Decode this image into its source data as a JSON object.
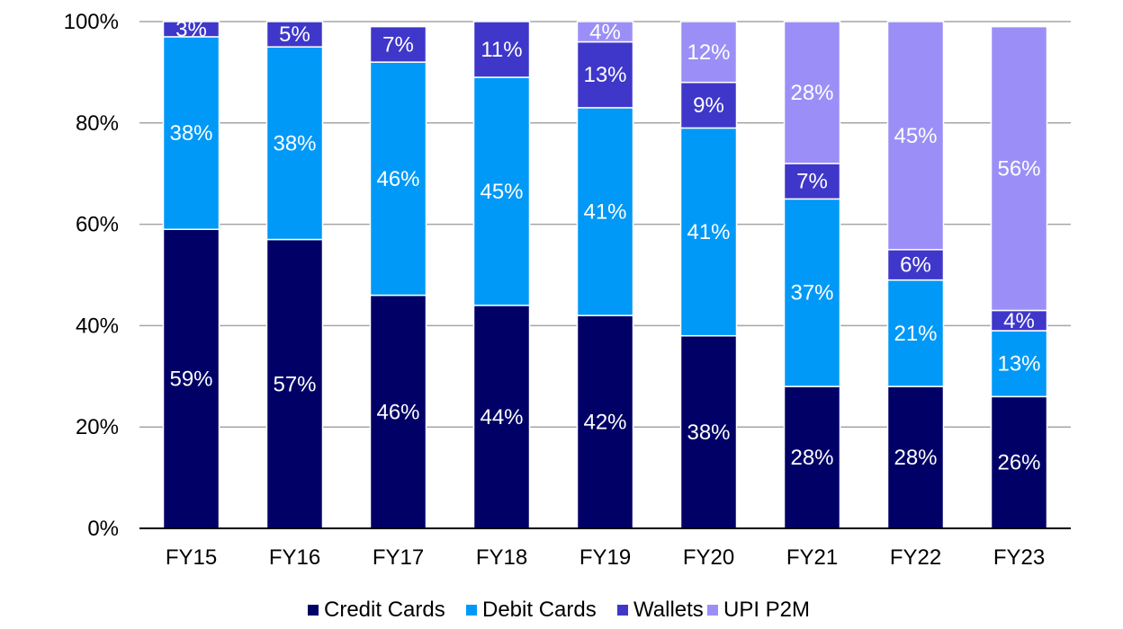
{
  "chart_data": {
    "type": "bar",
    "stacked": true,
    "categories": [
      "FY15",
      "FY16",
      "FY17",
      "FY18",
      "FY19",
      "FY20",
      "FY21",
      "FY22",
      "FY23"
    ],
    "series": [
      {
        "name": "Credit Cards",
        "color": "#000066",
        "values": [
          59,
          57,
          46,
          44,
          42,
          38,
          28,
          28,
          26
        ]
      },
      {
        "name": "Debit Cards",
        "color": "#0099F7",
        "values": [
          38,
          38,
          46,
          45,
          41,
          41,
          37,
          21,
          13
        ]
      },
      {
        "name": "Wallets",
        "color": "#3F37C9",
        "values": [
          3,
          5,
          7,
          11,
          13,
          9,
          7,
          6,
          4
        ]
      },
      {
        "name": "UPI P2M",
        "color": "#9B8FF7",
        "values": [
          0,
          0,
          0,
          0,
          4,
          12,
          28,
          45,
          56
        ]
      }
    ],
    "value_suffix": "%",
    "ylim": [
      0,
      100
    ],
    "yticks": [
      "0%",
      "20%",
      "40%",
      "60%",
      "80%",
      "100%"
    ],
    "ytick_values": [
      0,
      20,
      40,
      60,
      80,
      100
    ],
    "grid": true,
    "legend_position": "bottom",
    "title": "",
    "xlabel": "",
    "ylabel": ""
  }
}
